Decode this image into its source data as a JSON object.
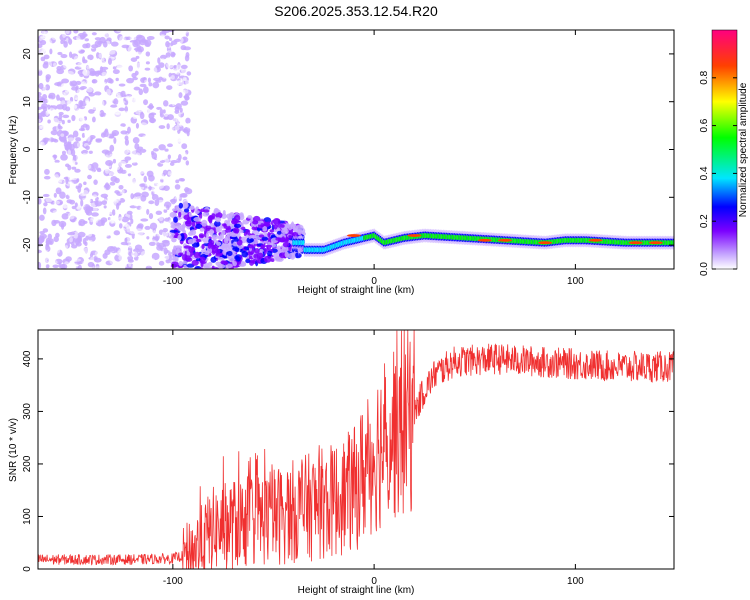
{
  "figure": {
    "title": "S206.2025.353.12.54.R20"
  },
  "chart_data": [
    {
      "type": "heatmap",
      "xlabel": "Height of straight line (km)",
      "ylabel": "Frequency (Hz)",
      "xlim": [
        -167,
        149
      ],
      "ylim": [
        -25,
        25
      ],
      "xticks": [
        -100,
        0,
        100
      ],
      "yticks": [
        -20,
        -10,
        0,
        10,
        20
      ],
      "colorbar": {
        "label": "Normalized spectral amplitude",
        "range": [
          0,
          1
        ],
        "ticks": [
          "0.0",
          "0.2",
          "0.4",
          "0.6",
          "0.8"
        ],
        "colors": [
          "#ffffff",
          "#c7a8ff",
          "#7b00ff",
          "#0000ff",
          "#00e6ff",
          "#00ff00",
          "#ffff00",
          "#ff4000",
          "#ff007f"
        ]
      },
      "ridge": {
        "description_points_x": [
          -35,
          -25,
          -15,
          -5,
          0,
          5,
          15,
          25,
          45,
          65,
          85,
          95,
          105,
          125,
          149
        ],
        "frequency_hz": [
          -21,
          -21,
          -19.5,
          -18.5,
          -18,
          -19.5,
          -18.5,
          -18,
          -18.5,
          -19,
          -19.5,
          -19,
          -19,
          -19.5,
          -19.5
        ]
      }
    },
    {
      "type": "line",
      "xlabel": "Height of straight line (km)",
      "ylabel": "SNR (10 * v/v)",
      "xlim": [
        -167,
        149
      ],
      "ylim": [
        0,
        455
      ],
      "xticks": [
        -100,
        0,
        100
      ],
      "yticks": [
        0,
        100,
        200,
        300,
        400
      ],
      "color": "#f03030",
      "envelope_x": [
        -167,
        -120,
        -100,
        -95,
        -90,
        -85,
        -80,
        -70,
        -60,
        -50,
        -40,
        -30,
        -20,
        -10,
        0,
        10,
        20,
        25,
        30,
        40,
        60,
        80,
        100,
        120,
        149
      ],
      "envelope_mean": [
        18,
        18,
        20,
        25,
        35,
        55,
        75,
        85,
        95,
        100,
        110,
        120,
        130,
        150,
        220,
        270,
        300,
        340,
        370,
        395,
        400,
        395,
        390,
        385,
        385
      ]
    }
  ]
}
